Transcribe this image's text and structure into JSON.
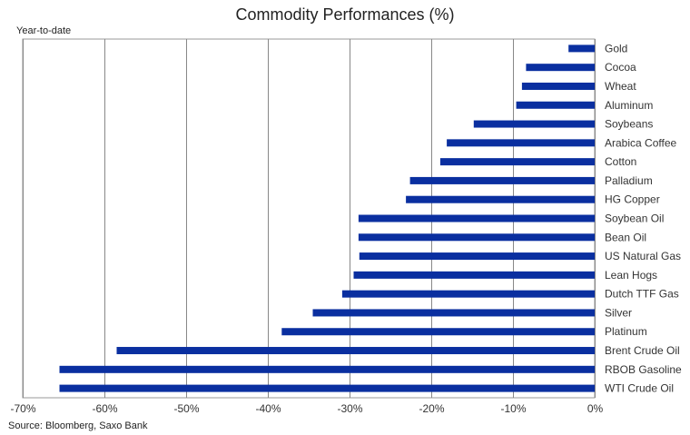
{
  "chart_data": {
    "type": "bar",
    "orientation": "horizontal",
    "title": "Commodity Performances (%)",
    "subtitle": "Year-to-date",
    "source": "Source: Bloomberg, Saxo Bank",
    "categories": [
      "Gold",
      "Cocoa",
      "Wheat",
      "Aluminum",
      "Soybeans",
      "Arabica Coffee",
      "Cotton",
      "Palladium",
      "HG Copper",
      "Soybean Oil",
      "Bean Oil",
      "US Natural Gas",
      "Lean Hogs",
      "Dutch TTF Gas",
      "Silver",
      "Platinum",
      "Brent Crude Oil",
      "RBOB Gasoline",
      "WTI Crude Oil"
    ],
    "values": [
      -3.2,
      -8.4,
      -8.9,
      -9.6,
      -14.8,
      -18.1,
      -18.9,
      -22.6,
      -23.1,
      -28.9,
      -28.9,
      -28.8,
      -29.5,
      -30.9,
      -34.5,
      -38.3,
      -58.5,
      -65.5,
      -65.5
    ],
    "xlim": [
      -70,
      0
    ],
    "xticks": [
      -70,
      -60,
      -50,
      -40,
      -30,
      -20,
      -10,
      0
    ],
    "xtick_labels": [
      "-70%",
      "-60%",
      "-50%",
      "-40%",
      "-30%",
      "-20%",
      "-10%",
      "0%"
    ],
    "grid": true,
    "bar_color": "#0a2fa0"
  }
}
